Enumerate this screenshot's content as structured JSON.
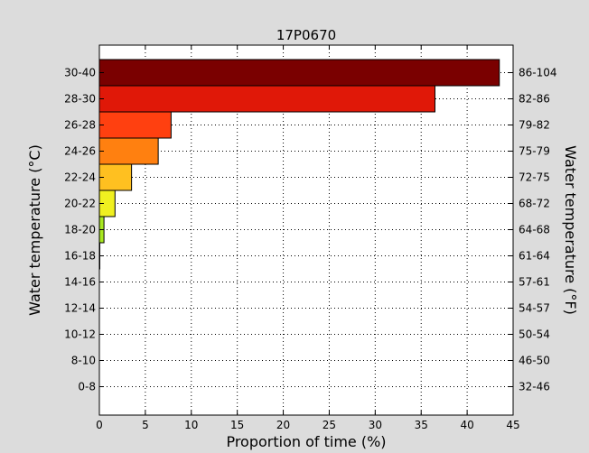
{
  "chart_data": {
    "type": "bar",
    "orientation": "horizontal",
    "title": "17P0670",
    "xlabel": "Proportion of time (%)",
    "ylabel": "Water temperature (°C)",
    "ylabel_right": "Water temperature (°F)",
    "xlim": [
      0,
      45
    ],
    "xticks": [
      0,
      5,
      10,
      15,
      20,
      25,
      30,
      35,
      40,
      45
    ],
    "grid": true,
    "categories": [
      "0-8",
      "8-10",
      "10-12",
      "12-14",
      "14-16",
      "16-18",
      "18-20",
      "20-22",
      "22-24",
      "24-26",
      "26-28",
      "28-30",
      "30-40"
    ],
    "categories_right": [
      "32-46",
      "46-50",
      "50-54",
      "54-57",
      "57-61",
      "61-64",
      "64-68",
      "68-72",
      "72-75",
      "75-79",
      "79-82",
      "82-86",
      "86-104"
    ],
    "values": [
      0,
      0,
      0,
      0,
      0,
      0.05,
      0.5,
      1.7,
      3.5,
      6.4,
      7.8,
      36.5,
      43.5
    ],
    "colors": [
      "#3050f8",
      "#3878f0",
      "#40a0e8",
      "#48c8d8",
      "#50e0b0",
      "#80ff60",
      "#a8e820",
      "#f0f020",
      "#ffc020",
      "#ff8010",
      "#ff4010",
      "#e01808",
      "#7a0000"
    ]
  }
}
